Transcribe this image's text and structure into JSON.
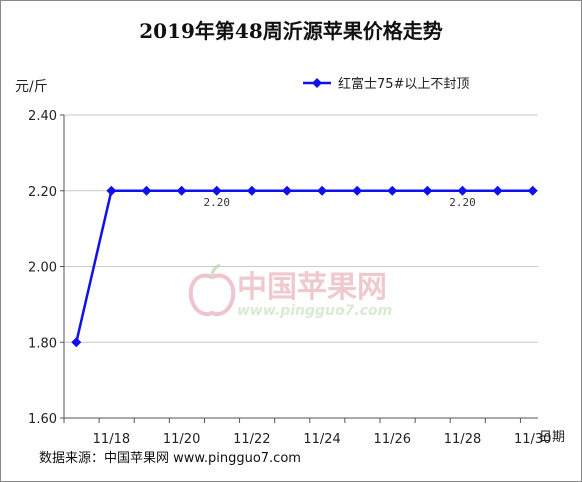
{
  "chart_data": {
    "type": "line",
    "title": "2019年第48周沂源苹果价格走势",
    "ylabel": "元/斤",
    "xlabel": "日期",
    "ylim": [
      1.6,
      2.4
    ],
    "yticks": [
      "2.40",
      "2.20",
      "2.00",
      "1.80",
      "1.60"
    ],
    "xticks": [
      "11/18",
      "11/20",
      "11/22",
      "11/24",
      "11/26",
      "11/28",
      "11/30"
    ],
    "x": [
      "11/17",
      "11/18",
      "11/19",
      "11/20",
      "11/21",
      "11/22",
      "11/23",
      "11/24",
      "11/25",
      "11/26",
      "11/27",
      "11/28",
      "11/29",
      "11/30"
    ],
    "series": [
      {
        "name": "红富士75#以上不封顶",
        "color": "#1010ee",
        "values": [
          1.8,
          2.2,
          2.2,
          2.2,
          2.2,
          2.2,
          2.2,
          2.2,
          2.2,
          2.2,
          2.2,
          2.2,
          2.2,
          2.2
        ]
      }
    ],
    "data_labels": [
      {
        "x": "11/21",
        "text": "2.20"
      },
      {
        "x": "11/28",
        "text": "2.20"
      }
    ],
    "grid": "horizontal",
    "legend": "top-right"
  },
  "source_note": "数据来源：中国苹果网 www.pingguo7.com",
  "watermark": {
    "brand_cn": "中国苹果网",
    "brand_url": "www.pingguo7.com",
    "logo_icon": "apple-icon"
  }
}
